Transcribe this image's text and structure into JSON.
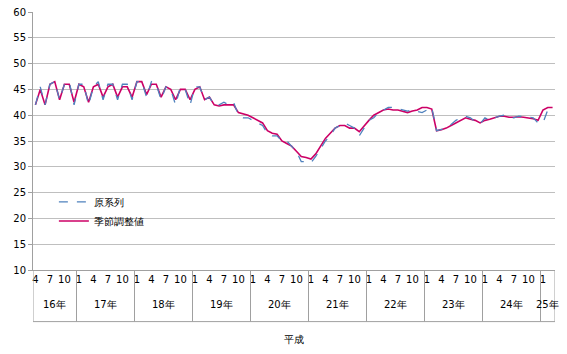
{
  "chart_data": {
    "type": "line",
    "categories": [
      "4",
      null,
      null,
      "7",
      null,
      null,
      "10",
      null,
      null,
      "1",
      null,
      null,
      "4",
      null,
      null,
      "7",
      null,
      null,
      "10",
      null,
      null,
      "1",
      null,
      null,
      "4",
      null,
      null,
      "7",
      null,
      null,
      "10",
      null,
      null,
      "1",
      null,
      null,
      "4",
      null,
      null,
      "7",
      null,
      null,
      "10",
      null,
      null,
      "1",
      null,
      null,
      "4",
      null,
      null,
      "7",
      null,
      null,
      "10",
      null,
      null,
      "1",
      null,
      null,
      "4",
      null,
      null,
      "7",
      null,
      null,
      "10",
      null,
      null,
      "1",
      null,
      null,
      "4",
      null,
      null,
      "7",
      null,
      null,
      "10",
      null,
      null,
      "1",
      null,
      null,
      "4",
      null,
      null,
      "7",
      null,
      null,
      "10",
      null,
      null,
      "1",
      null,
      null,
      "4",
      null,
      null,
      "7",
      null,
      null,
      "10",
      null,
      null,
      "1",
      null,
      null
    ],
    "category_groups": [
      {
        "label": "16年",
        "count": 9
      },
      {
        "label": "17年",
        "count": 12
      },
      {
        "label": "18年",
        "count": 12
      },
      {
        "label": "19年",
        "count": 12
      },
      {
        "label": "20年",
        "count": 12
      },
      {
        "label": "21年",
        "count": 12
      },
      {
        "label": "22年",
        "count": 12
      },
      {
        "label": "23年",
        "count": 12
      },
      {
        "label": "24年",
        "count": 12
      },
      {
        "label": "25年",
        "count": 3
      }
    ],
    "group_title": "平成",
    "series": [
      {
        "name": "原系列",
        "color": "#4f81bd",
        "line_style": "dash",
        "values": [
          42,
          45.5,
          42,
          46,
          46.5,
          43,
          46,
          46.5,
          42,
          46,
          46,
          42,
          45.5,
          46.5,
          43,
          46,
          46,
          43,
          46,
          46,
          43,
          46.5,
          46.5,
          43.5,
          46.5,
          46,
          43,
          45.5,
          45,
          42,
          45.5,
          45,
          42,
          45.5,
          45.5,
          43,
          43.5,
          42,
          42,
          42.5,
          42,
          42.5,
          40,
          39.5,
          39.5,
          39,
          38.5,
          38,
          36.5,
          36,
          36,
          35,
          35,
          34,
          33,
          31,
          31,
          30.8,
          32,
          33.5,
          35,
          36,
          37.5,
          38,
          38.5,
          38,
          37.5,
          36,
          37.5,
          39,
          39.5,
          40.5,
          41,
          41.5,
          41.5,
          41.3,
          41,
          40.8,
          41,
          40.8,
          40.5,
          41,
          41.5,
          37,
          37.3,
          37.5,
          38.2,
          39,
          39.5,
          39.8,
          39.5,
          38.7,
          38.3,
          39.5,
          39,
          39.5,
          39.8,
          40,
          39.7,
          39.5,
          39.8,
          39.7,
          39.5,
          39.5,
          38.5,
          38.5,
          41,
          41.5
        ]
      },
      {
        "name": "季節調整値",
        "color": "#cc0066",
        "line_style": "solid",
        "values": [
          42,
          45,
          42,
          46,
          46.5,
          43,
          46,
          46,
          42.5,
          46,
          45.5,
          42.5,
          45.5,
          46,
          43.5,
          45.5,
          46,
          43.5,
          45.5,
          45.5,
          43.5,
          46.5,
          46.5,
          44,
          46,
          46,
          43.5,
          45.5,
          45,
          43,
          45,
          45,
          43,
          45,
          45.5,
          43,
          43.5,
          42,
          41.8,
          42,
          42,
          42,
          40.5,
          40.2,
          40,
          39.5,
          39,
          38.5,
          37,
          36.5,
          36.3,
          35,
          34.5,
          34,
          33,
          32,
          31.8,
          31.5,
          32.5,
          34,
          35.5,
          36.5,
          37.5,
          38,
          38,
          37.5,
          37.5,
          36.8,
          38,
          39,
          40,
          40.5,
          41,
          41.2,
          41,
          41,
          40.7,
          40.5,
          40.8,
          41,
          41.5,
          41.5,
          41.2,
          37,
          37.2,
          37.5,
          38,
          38.5,
          39,
          39.5,
          39.2,
          39,
          38.5,
          39,
          39.2,
          39.5,
          39.8,
          39.8,
          39.6,
          39.6,
          39.7,
          39.6,
          39.5,
          39.3,
          39,
          41,
          41.5,
          41.5
        ]
      }
    ],
    "ylim": [
      10,
      60
    ],
    "yticks": [
      10,
      15,
      20,
      25,
      30,
      35,
      40,
      45,
      50,
      55,
      60
    ],
    "grid": true,
    "legend": "lower left"
  }
}
